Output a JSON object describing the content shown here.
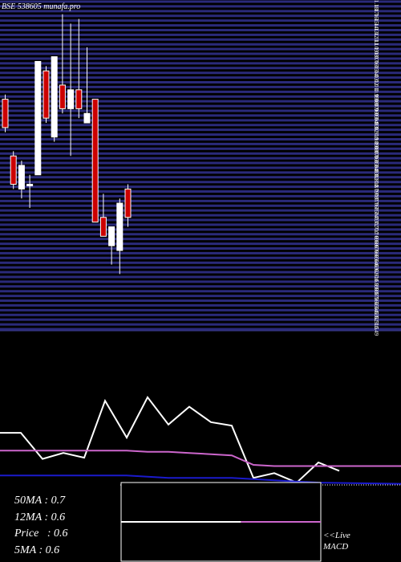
{
  "header": {
    "title": "BSE 538605 munafa.pro"
  },
  "chart_data": {
    "type": "candlestick",
    "title": "BSE 538605 munafa.pro",
    "price_axis": {
      "tick_labels": [
        "1.18",
        "1.17",
        "1.16",
        "1.15",
        "1.14",
        "1.13",
        "1.12",
        "1.11",
        "1.1",
        "1.09",
        "1.08",
        "1.07",
        "1.06",
        "1.05",
        "1.04",
        "1.03",
        "1.02",
        "1.01",
        "1",
        "0.99",
        "0.98",
        "0.97",
        "0.96",
        "0.95",
        "0.94",
        "0.93",
        "0.92",
        "0.91",
        "0.9",
        "0.89",
        "0.88",
        "0.87",
        "0.86",
        "0.85",
        "0.84",
        "0.83",
        "0.82",
        "0.81",
        "0.8",
        "0.79",
        "0.78",
        "0.77",
        "0.76",
        "0.75",
        "0.74",
        "0.73",
        "0.72",
        "0.71",
        "0.7",
        "0.69",
        "0.68",
        "0.67",
        "0.66",
        "0.65",
        "0.64",
        "0.63",
        "0.62",
        "0.61",
        "0.6",
        "0.59",
        "0.58",
        "0.57",
        "0.56",
        "0.55",
        "0.54",
        "0.53",
        "0.52",
        "0.51",
        "0.5",
        "0.49"
      ],
      "ylim": [
        0.49,
        1.19
      ]
    },
    "candles": [
      {
        "open": 0.98,
        "close": 0.92,
        "high": 0.99,
        "low": 0.91,
        "color": "red"
      },
      {
        "open": 0.86,
        "close": 0.8,
        "high": 0.87,
        "low": 0.79,
        "color": "red"
      },
      {
        "open": 0.79,
        "close": 0.84,
        "high": 0.85,
        "low": 0.77,
        "color": "white"
      },
      {
        "open": 0.8,
        "close": 0.8,
        "high": 0.82,
        "low": 0.75,
        "color": "white"
      },
      {
        "open": 0.82,
        "close": 1.06,
        "high": 1.06,
        "low": 0.82,
        "color": "white"
      },
      {
        "open": 1.04,
        "close": 0.94,
        "high": 1.05,
        "low": 0.93,
        "color": "red"
      },
      {
        "open": 0.9,
        "close": 1.07,
        "high": 1.07,
        "low": 0.89,
        "color": "white"
      },
      {
        "open": 1.01,
        "close": 0.96,
        "high": 1.16,
        "low": 0.95,
        "color": "red"
      },
      {
        "open": 0.96,
        "close": 1.0,
        "high": 1.14,
        "low": 0.86,
        "color": "white"
      },
      {
        "open": 1.0,
        "close": 0.96,
        "high": 1.15,
        "low": 0.94,
        "color": "red"
      },
      {
        "open": 0.93,
        "close": 0.95,
        "high": 1.09,
        "low": 0.93,
        "color": "white"
      },
      {
        "open": 0.98,
        "close": 0.72,
        "high": 0.98,
        "low": 0.72,
        "color": "red"
      },
      {
        "open": 0.73,
        "close": 0.69,
        "high": 0.78,
        "low": 0.69,
        "color": "red"
      },
      {
        "open": 0.67,
        "close": 0.71,
        "high": 0.71,
        "low": 0.63,
        "color": "white"
      },
      {
        "open": 0.66,
        "close": 0.76,
        "high": 0.77,
        "low": 0.61,
        "color": "white"
      },
      {
        "open": 0.73,
        "close": 0.79,
        "high": 0.8,
        "low": 0.71,
        "color": "red"
      }
    ],
    "indicator_panel": {
      "series": [
        {
          "color": "#ffffff",
          "values": [
            40,
            40,
            18,
            23,
            19,
            67,
            36,
            70,
            47,
            62,
            49,
            46,
            2,
            6,
            -2,
            15,
            8
          ]
        },
        {
          "color": "#cc66cc",
          "values": [
            25,
            25,
            25,
            25,
            25,
            25,
            25,
            24,
            24,
            23,
            22,
            21,
            13,
            12,
            12,
            12,
            12
          ]
        },
        {
          "color": "#1a1acc",
          "values": [
            4,
            4,
            4,
            4,
            4,
            4,
            4,
            3,
            2,
            2,
            2,
            2,
            1,
            0,
            -1,
            -2,
            -3
          ]
        }
      ],
      "ylim": [
        -8,
        80
      ]
    },
    "macd_panel": {
      "label": "<<Live MACD",
      "segments": [
        {
          "color": "#ffffff",
          "from": 0.0,
          "to": 0.6
        },
        {
          "color": "#cc66cc",
          "from": 0.6,
          "to": 1.0
        }
      ]
    },
    "stats": [
      {
        "label": "50MA",
        "value": ": 0.7"
      },
      {
        "label": "12MA",
        "value": ": 0.6"
      },
      {
        "label": "Price",
        "value": "  : 0.6"
      },
      {
        "label": "5MA",
        "value": ": 0.6"
      }
    ]
  }
}
